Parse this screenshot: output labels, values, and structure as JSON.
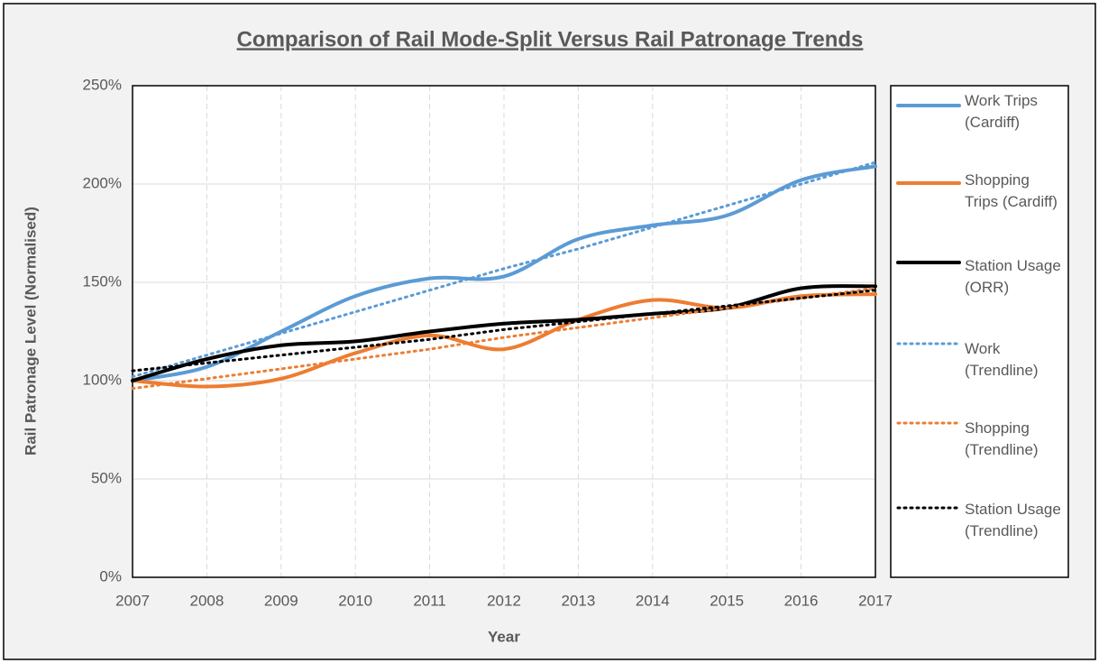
{
  "chart_data": {
    "type": "line",
    "title": "Comparison  of Rail Mode-Split Versus Rail Patronage Trends",
    "x_label": "Year",
    "y_label": "Rail Patronage Level (Normalised)",
    "x": [
      2007,
      2008,
      2009,
      2010,
      2011,
      2012,
      2013,
      2014,
      2015,
      2016,
      2017
    ],
    "xlim": [
      2007,
      2017
    ],
    "xticks": [
      2007,
      2008,
      2009,
      2010,
      2011,
      2012,
      2013,
      2014,
      2015,
      2016,
      2017
    ],
    "ylim": [
      0,
      250
    ],
    "yticks": [
      {
        "value": 0,
        "label": "0%"
      },
      {
        "value": 50,
        "label": "50%"
      },
      {
        "value": 100,
        "label": "100%"
      },
      {
        "value": 150,
        "label": "150%"
      },
      {
        "value": 200,
        "label": "200%"
      },
      {
        "value": 250,
        "label": "250%"
      }
    ],
    "grid": true,
    "legend": "right",
    "series": [
      {
        "name": "Work Trips (Cardiff)",
        "color": "#5b9bd5",
        "style": "solid",
        "values": [
          100,
          107,
          125,
          143,
          152,
          153,
          172,
          179,
          184,
          202,
          209
        ]
      },
      {
        "name": "Shopping Trips (Cardiff)",
        "color": "#ed7d31",
        "style": "solid",
        "values": [
          100,
          97,
          101,
          114,
          123,
          116,
          131,
          141,
          137,
          143,
          144
        ]
      },
      {
        "name": "Station Usage (ORR)",
        "color": "#000000",
        "style": "solid",
        "values": [
          100,
          111,
          118,
          120,
          125,
          129,
          131,
          134,
          137,
          147,
          148
        ]
      },
      {
        "name": "Work (Trendline)",
        "color": "#5b9bd5",
        "style": "dotted",
        "values": [
          102,
          113,
          124,
          135,
          146,
          157,
          167,
          178,
          189,
          200,
          211
        ]
      },
      {
        "name": "Shopping (Trendline)",
        "color": "#ed7d31",
        "style": "dotted",
        "values": [
          96,
          101,
          106,
          111,
          116,
          122,
          127,
          132,
          137,
          142,
          147
        ]
      },
      {
        "name": "Station Usage (Trendline)",
        "color": "#000000",
        "style": "dotted",
        "values": [
          105,
          109,
          113,
          117,
          121,
          126,
          130,
          134,
          138,
          142,
          146
        ]
      }
    ]
  }
}
